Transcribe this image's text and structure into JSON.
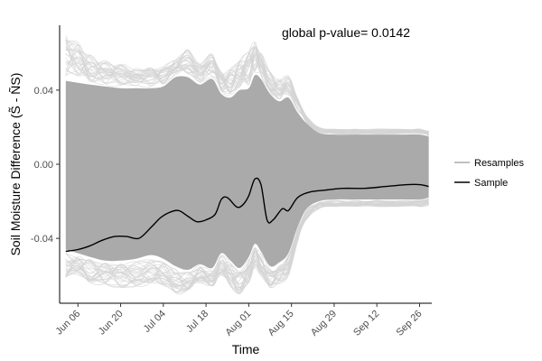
{
  "chart_data": {
    "type": "line",
    "title": "",
    "annotation": "global p-value= 0.0142",
    "xlabel": "Time",
    "ylabel": "Soil Moisture Difference (S̃ - ÑS)",
    "x_range_days": [
      "2017-05-31",
      "2017-09-30"
    ],
    "ylim": [
      -0.075,
      0.075
    ],
    "x_ticks": [
      {
        "date": "2017-06-06",
        "label": "Jun 06"
      },
      {
        "date": "2017-06-20",
        "label": "Jun 20"
      },
      {
        "date": "2017-07-04",
        "label": "Jul 04"
      },
      {
        "date": "2017-07-18",
        "label": "Jul 18"
      },
      {
        "date": "2017-08-01",
        "label": "Aug 01"
      },
      {
        "date": "2017-08-15",
        "label": "Aug 15"
      },
      {
        "date": "2017-08-29",
        "label": "Aug 29"
      },
      {
        "date": "2017-09-12",
        "label": "Sep 12"
      },
      {
        "date": "2017-09-26",
        "label": "Sep 26"
      }
    ],
    "y_ticks": [
      {
        "value": 0.04,
        "label": "0.04"
      },
      {
        "value": 0.0,
        "label": "0.00"
      },
      {
        "value": -0.04,
        "label": "-0.04"
      }
    ],
    "grid": false,
    "legend_position": "right",
    "series": [
      {
        "name": "Resamples",
        "color": "#aaaaaa",
        "band": {
          "x": [
            "2017-06-02",
            "2017-06-06",
            "2017-06-10",
            "2017-06-15",
            "2017-06-20",
            "2017-06-25",
            "2017-06-30",
            "2017-07-04",
            "2017-07-08",
            "2017-07-12",
            "2017-07-16",
            "2017-07-20",
            "2017-07-23",
            "2017-07-26",
            "2017-07-29",
            "2017-08-01",
            "2017-08-03",
            "2017-08-05",
            "2017-08-08",
            "2017-08-11",
            "2017-08-14",
            "2017-08-17",
            "2017-08-20",
            "2017-08-24",
            "2017-08-29",
            "2017-09-05",
            "2017-09-12",
            "2017-09-19",
            "2017-09-26",
            "2017-09-29"
          ],
          "upper": [
            0.045,
            0.044,
            0.043,
            0.042,
            0.041,
            0.041,
            0.041,
            0.042,
            0.047,
            0.047,
            0.043,
            0.046,
            0.038,
            0.036,
            0.04,
            0.041,
            0.048,
            0.046,
            0.038,
            0.034,
            0.036,
            0.028,
            0.022,
            0.017,
            0.016,
            0.016,
            0.016,
            0.016,
            0.016,
            0.015
          ],
          "lower": [
            -0.046,
            -0.048,
            -0.05,
            -0.052,
            -0.052,
            -0.051,
            -0.049,
            -0.051,
            -0.055,
            -0.057,
            -0.054,
            -0.056,
            -0.048,
            -0.052,
            -0.056,
            -0.05,
            -0.043,
            -0.047,
            -0.055,
            -0.053,
            -0.048,
            -0.034,
            -0.024,
            -0.02,
            -0.019,
            -0.019,
            -0.019,
            -0.019,
            -0.019,
            -0.018
          ]
        },
        "envelope": {
          "upper": [
            0.07,
            0.066,
            0.06,
            0.056,
            0.054,
            0.052,
            0.052,
            0.053,
            0.057,
            0.062,
            0.055,
            0.06,
            0.05,
            0.052,
            0.056,
            0.061,
            0.066,
            0.062,
            0.05,
            0.046,
            0.048,
            0.036,
            0.026,
            0.02,
            0.019,
            0.019,
            0.019,
            0.019,
            0.019,
            0.018
          ],
          "lower": [
            -0.062,
            -0.06,
            -0.064,
            -0.066,
            -0.067,
            -0.066,
            -0.064,
            -0.066,
            -0.07,
            -0.068,
            -0.064,
            -0.066,
            -0.06,
            -0.066,
            -0.07,
            -0.064,
            -0.056,
            -0.06,
            -0.067,
            -0.066,
            -0.06,
            -0.042,
            -0.03,
            -0.024,
            -0.023,
            -0.023,
            -0.023,
            -0.023,
            -0.023,
            -0.022
          ]
        }
      },
      {
        "name": "Sample",
        "color": "#000000",
        "x": [
          "2017-06-02",
          "2017-06-06",
          "2017-06-10",
          "2017-06-14",
          "2017-06-18",
          "2017-06-22",
          "2017-06-26",
          "2017-06-30",
          "2017-07-03",
          "2017-07-06",
          "2017-07-09",
          "2017-07-12",
          "2017-07-15",
          "2017-07-18",
          "2017-07-21",
          "2017-07-23",
          "2017-07-25",
          "2017-07-28",
          "2017-07-30",
          "2017-08-01",
          "2017-08-03",
          "2017-08-05",
          "2017-08-07",
          "2017-08-09",
          "2017-08-12",
          "2017-08-14",
          "2017-08-17",
          "2017-08-21",
          "2017-08-26",
          "2017-09-01",
          "2017-09-08",
          "2017-09-15",
          "2017-09-22",
          "2017-09-26",
          "2017-09-29"
        ],
        "y": [
          -0.047,
          -0.046,
          -0.044,
          -0.041,
          -0.039,
          -0.039,
          -0.04,
          -0.034,
          -0.029,
          -0.026,
          -0.025,
          -0.028,
          -0.031,
          -0.03,
          -0.027,
          -0.019,
          -0.018,
          -0.023,
          -0.022,
          -0.017,
          -0.008,
          -0.011,
          -0.03,
          -0.03,
          -0.024,
          -0.025,
          -0.018,
          -0.015,
          -0.014,
          -0.013,
          -0.013,
          -0.012,
          -0.011,
          -0.011,
          -0.012
        ]
      }
    ]
  }
}
